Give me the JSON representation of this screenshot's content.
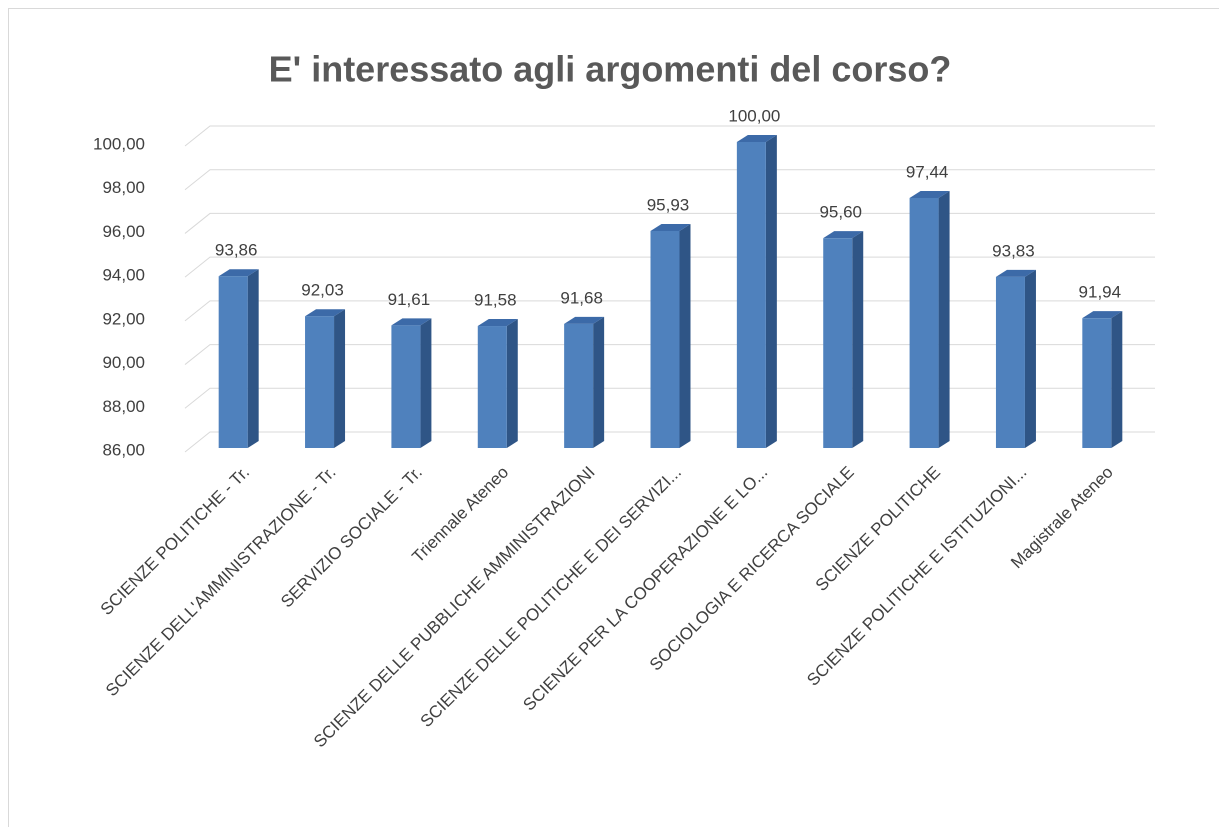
{
  "chart_data": {
    "type": "bar3d",
    "title": "E' interessato agli argomenti del corso?",
    "categories": [
      "SCIENZE POLITICHE - Tr.",
      "SCIENZE DELL'AMMINISTRAZIONE - Tr.",
      "SERVIZIO SOCIALE - Tr.",
      "Triennale Ateneo",
      "SCIENZE DELLE PUBBLICHE AMMINISTRAZIONI",
      "SCIENZE DELLE POLITICHE E DEI SERVIZI...",
      "SCIENZE PER LA COOPERAZIONE E LO...",
      "SOCIOLOGIA E RICERCA SOCIALE",
      "SCIENZE POLITICHE",
      "SCIENZE POLITICHE E ISTITUZIONI...",
      "Magistrale Ateneo"
    ],
    "values": [
      93.86,
      92.03,
      91.61,
      91.58,
      91.68,
      95.93,
      100.0,
      95.6,
      97.44,
      93.83,
      91.94
    ],
    "value_labels": [
      "93,86",
      "92,03",
      "91,61",
      "91,58",
      "91,68",
      "95,93",
      "100,00",
      "95,60",
      "97,44",
      "93,83",
      "91,94"
    ],
    "color": "#4f81bd",
    "ylim": [
      86,
      100
    ],
    "yticks": [
      {
        "value": 86,
        "label": "86,00"
      },
      {
        "value": 88,
        "label": "88,00"
      },
      {
        "value": 90,
        "label": "90,00"
      },
      {
        "value": 92,
        "label": "92,00"
      },
      {
        "value": 94,
        "label": "94,00"
      },
      {
        "value": 96,
        "label": "96,00"
      },
      {
        "value": 98,
        "label": "98,00"
      },
      {
        "value": 100,
        "label": "100,00"
      }
    ],
    "grid": true
  }
}
